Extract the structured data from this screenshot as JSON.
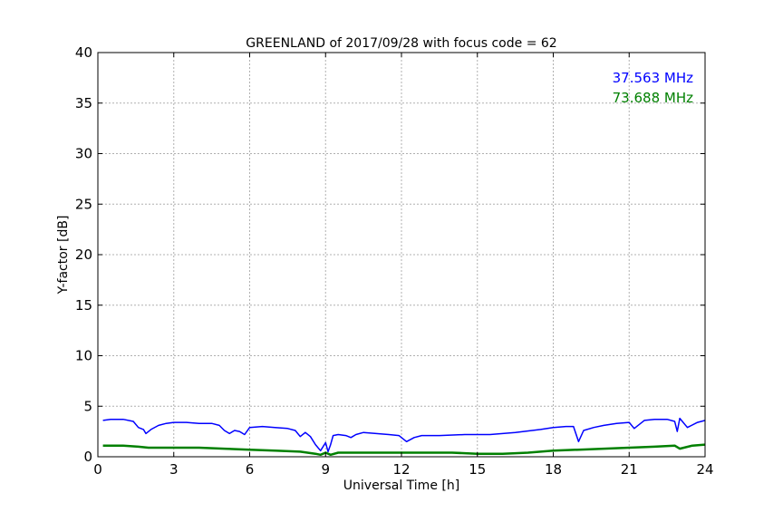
{
  "chart_data": {
    "type": "line",
    "title": "GREENLAND of 2017/09/28 with focus code = 62",
    "xlabel": "Universal Time [h]",
    "ylabel": "Y-factor [dB]",
    "xlim": [
      0,
      24
    ],
    "ylim": [
      0,
      40
    ],
    "xticks": [
      0,
      3,
      6,
      9,
      12,
      15,
      18,
      21,
      24
    ],
    "yticks": [
      0,
      5,
      10,
      15,
      20,
      25,
      30,
      35,
      40
    ],
    "grid": true,
    "legend_placement": "top-right",
    "series": [
      {
        "name": "37.563 MHz",
        "color": "#0000ff",
        "x": [
          0.2,
          0.5,
          1.0,
          1.4,
          1.6,
          1.8,
          1.9,
          2.1,
          2.4,
          2.7,
          3.0,
          3.5,
          4.0,
          4.5,
          4.8,
          5.0,
          5.2,
          5.4,
          5.6,
          5.8,
          6.0,
          6.5,
          7.0,
          7.5,
          7.8,
          8.0,
          8.2,
          8.4,
          8.6,
          8.8,
          9.0,
          9.1,
          9.2,
          9.3,
          9.5,
          9.8,
          10.0,
          10.2,
          10.5,
          11.0,
          11.5,
          11.9,
          12.2,
          12.5,
          12.8,
          13.5,
          14.5,
          15.5,
          16.5,
          17.5,
          18.0,
          18.5,
          18.8,
          19.0,
          19.2,
          19.6,
          20.0,
          20.5,
          21.0,
          21.2,
          21.6,
          22.0,
          22.5,
          22.8,
          22.9,
          23.0,
          23.3,
          23.7,
          24.0
        ],
        "values": [
          3.6,
          3.7,
          3.7,
          3.5,
          2.9,
          2.7,
          2.3,
          2.7,
          3.1,
          3.3,
          3.4,
          3.4,
          3.3,
          3.3,
          3.1,
          2.6,
          2.3,
          2.6,
          2.5,
          2.2,
          2.9,
          3.0,
          2.9,
          2.8,
          2.6,
          2.0,
          2.4,
          2.0,
          1.2,
          0.6,
          1.4,
          0.5,
          1.2,
          2.1,
          2.2,
          2.1,
          1.9,
          2.2,
          2.4,
          2.3,
          2.2,
          2.1,
          1.5,
          1.9,
          2.1,
          2.1,
          2.2,
          2.2,
          2.4,
          2.7,
          2.9,
          3.0,
          3.0,
          1.5,
          2.6,
          2.9,
          3.1,
          3.3,
          3.4,
          2.8,
          3.6,
          3.7,
          3.7,
          3.5,
          2.5,
          3.8,
          2.9,
          3.4,
          3.6
        ]
      },
      {
        "name": "73.688 MHz",
        "color": "#008000",
        "x": [
          0.2,
          1.0,
          1.6,
          2.0,
          3.0,
          4.0,
          5.0,
          6.0,
          7.0,
          8.0,
          8.6,
          8.8,
          9.0,
          9.2,
          9.5,
          10.0,
          11.0,
          12.0,
          13.0,
          14.0,
          15.0,
          16.0,
          17.0,
          18.0,
          19.0,
          20.0,
          21.0,
          22.0,
          22.8,
          23.0,
          23.5,
          24.0
        ],
        "values": [
          1.1,
          1.1,
          1.0,
          0.9,
          0.9,
          0.9,
          0.8,
          0.7,
          0.6,
          0.5,
          0.3,
          0.2,
          0.4,
          0.2,
          0.4,
          0.4,
          0.4,
          0.4,
          0.4,
          0.4,
          0.3,
          0.3,
          0.4,
          0.6,
          0.7,
          0.8,
          0.9,
          1.0,
          1.1,
          0.8,
          1.1,
          1.2
        ]
      }
    ]
  }
}
